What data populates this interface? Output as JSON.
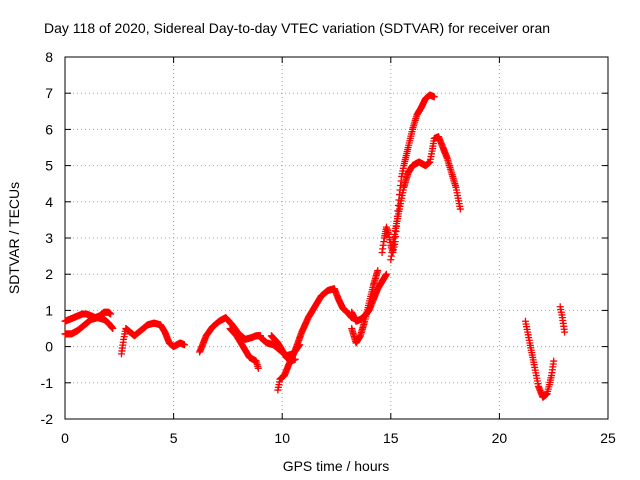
{
  "chart_data": {
    "type": "scatter",
    "title": "Day 118 of 2020, Sidereal Day-to-day VTEC variation (SDTVAR) for receiver oran",
    "xlabel": "GPS time / hours",
    "ylabel": "SDTVAR / TECUs",
    "xlim": [
      0,
      25
    ],
    "ylim": [
      -2,
      8
    ],
    "xticks": [
      0,
      5,
      10,
      15,
      20,
      25
    ],
    "yticks": [
      -2,
      -1,
      0,
      1,
      2,
      3,
      4,
      5,
      6,
      7,
      8
    ],
    "grid": true,
    "marker": "+",
    "color": "#ff0000",
    "series": [
      {
        "name": "SDTVAR",
        "segments": [
          [
            [
              0.0,
              0.7
            ],
            [
              0.2,
              0.75
            ],
            [
              0.4,
              0.8
            ],
            [
              0.6,
              0.85
            ],
            [
              0.8,
              0.9
            ],
            [
              1.0,
              0.9
            ],
            [
              1.2,
              0.85
            ],
            [
              1.4,
              0.8
            ],
            [
              1.6,
              0.85
            ],
            [
              1.8,
              0.95
            ],
            [
              2.0,
              0.95
            ],
            [
              2.1,
              0.9
            ]
          ],
          [
            [
              0.0,
              0.35
            ],
            [
              0.3,
              0.35
            ],
            [
              0.6,
              0.45
            ],
            [
              0.9,
              0.6
            ],
            [
              1.2,
              0.75
            ],
            [
              1.5,
              0.8
            ],
            [
              1.8,
              0.75
            ],
            [
              2.0,
              0.65
            ],
            [
              2.2,
              0.5
            ]
          ],
          [
            [
              2.6,
              -0.2
            ],
            [
              2.7,
              0.2
            ],
            [
              2.8,
              0.5
            ],
            [
              3.0,
              0.4
            ],
            [
              3.2,
              0.3
            ],
            [
              3.5,
              0.45
            ],
            [
              3.8,
              0.6
            ],
            [
              4.1,
              0.65
            ],
            [
              4.4,
              0.6
            ],
            [
              4.6,
              0.4
            ],
            [
              4.8,
              0.1
            ],
            [
              5.0,
              0.0
            ],
            [
              5.3,
              0.1
            ],
            [
              5.5,
              0.05
            ]
          ],
          [
            [
              6.2,
              -0.15
            ],
            [
              6.5,
              0.3
            ],
            [
              6.8,
              0.55
            ],
            [
              7.1,
              0.7
            ],
            [
              7.4,
              0.8
            ],
            [
              7.7,
              0.6
            ],
            [
              8.0,
              0.35
            ],
            [
              8.3,
              0.2
            ],
            [
              8.6,
              0.25
            ],
            [
              8.8,
              0.3
            ],
            [
              9.0,
              0.3
            ]
          ],
          [
            [
              7.6,
              0.5
            ],
            [
              7.9,
              0.3
            ],
            [
              8.2,
              0.0
            ],
            [
              8.5,
              -0.3
            ],
            [
              8.8,
              -0.4
            ],
            [
              8.9,
              -0.6
            ]
          ],
          [
            [
              9.0,
              0.25
            ],
            [
              9.3,
              0.1
            ],
            [
              9.6,
              0.05
            ],
            [
              9.9,
              -0.1
            ],
            [
              10.2,
              -0.25
            ],
            [
              10.5,
              -0.2
            ],
            [
              10.8,
              0.05
            ]
          ],
          [
            [
              9.5,
              0.3
            ],
            [
              9.8,
              0.1
            ],
            [
              10.0,
              -0.1
            ],
            [
              10.2,
              -0.3
            ],
            [
              10.4,
              -0.4
            ],
            [
              10.6,
              -0.35
            ]
          ],
          [
            [
              9.8,
              -1.2
            ],
            [
              9.9,
              -0.9
            ],
            [
              10.1,
              -0.8
            ],
            [
              10.3,
              -0.5
            ],
            [
              10.6,
              -0.1
            ],
            [
              10.9,
              0.4
            ],
            [
              11.2,
              0.8
            ],
            [
              11.5,
              1.1
            ],
            [
              11.8,
              1.4
            ],
            [
              12.1,
              1.55
            ],
            [
              12.4,
              1.6
            ],
            [
              12.6,
              1.3
            ],
            [
              12.8,
              1.05
            ],
            [
              13.0,
              0.95
            ],
            [
              13.2,
              0.8
            ]
          ],
          [
            [
              13.2,
              0.5
            ],
            [
              13.4,
              0.1
            ],
            [
              13.6,
              0.3
            ],
            [
              13.8,
              0.7
            ],
            [
              14.0,
              1.2
            ],
            [
              14.2,
              1.7
            ],
            [
              14.4,
              2.1
            ]
          ],
          [
            [
              13.2,
              0.95
            ],
            [
              13.4,
              0.7
            ],
            [
              13.6,
              0.75
            ],
            [
              13.8,
              0.85
            ],
            [
              14.0,
              1.0
            ],
            [
              14.2,
              1.3
            ],
            [
              14.4,
              1.6
            ],
            [
              14.6,
              1.8
            ],
            [
              14.8,
              2.0
            ]
          ],
          [
            [
              14.6,
              2.6
            ],
            [
              14.7,
              3.0
            ],
            [
              14.8,
              3.3
            ],
            [
              14.9,
              3.1
            ],
            [
              15.0,
              2.8
            ],
            [
              15.1,
              2.6
            ],
            [
              15.2,
              2.9
            ],
            [
              15.3,
              3.6
            ],
            [
              15.4,
              4.2
            ],
            [
              15.5,
              4.7
            ],
            [
              15.6,
              5.0
            ],
            [
              15.8,
              5.5
            ],
            [
              16.0,
              6.0
            ],
            [
              16.2,
              6.4
            ],
            [
              16.4,
              6.6
            ],
            [
              16.6,
              6.85
            ],
            [
              16.8,
              6.95
            ],
            [
              17.0,
              6.9
            ]
          ],
          [
            [
              15.0,
              2.4
            ],
            [
              15.2,
              3.2
            ],
            [
              15.4,
              3.8
            ],
            [
              15.6,
              4.4
            ],
            [
              15.8,
              4.8
            ],
            [
              16.0,
              5.0
            ],
            [
              16.3,
              5.1
            ],
            [
              16.6,
              5.0
            ],
            [
              16.8,
              5.1
            ],
            [
              16.9,
              5.4
            ],
            [
              17.0,
              5.75
            ],
            [
              17.2,
              5.8
            ],
            [
              17.4,
              5.5
            ],
            [
              17.6,
              5.2
            ],
            [
              17.8,
              4.8
            ],
            [
              18.0,
              4.4
            ],
            [
              18.2,
              3.8
            ]
          ],
          [
            [
              21.2,
              0.7
            ],
            [
              21.4,
              0.1
            ],
            [
              21.6,
              -0.5
            ],
            [
              21.8,
              -1.1
            ],
            [
              22.0,
              -1.4
            ],
            [
              22.2,
              -1.3
            ],
            [
              22.4,
              -0.8
            ],
            [
              22.5,
              -0.4
            ]
          ],
          [
            [
              22.8,
              1.1
            ],
            [
              22.9,
              0.8
            ],
            [
              23.0,
              0.4
            ]
          ]
        ]
      }
    ]
  }
}
